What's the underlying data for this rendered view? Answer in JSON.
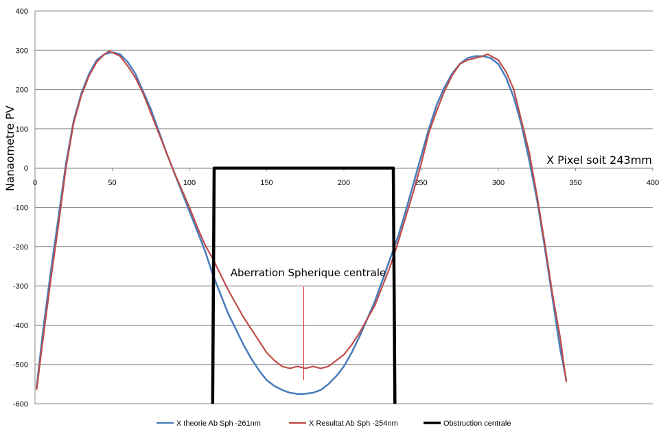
{
  "chart_data": {
    "type": "line",
    "title": "",
    "ylabel": "Nanaometre PV",
    "xlabel": "X Pixel soit 243mm",
    "xlim": [
      0,
      400
    ],
    "ylim": [
      -600,
      400
    ],
    "x_ticks": [
      0,
      50,
      100,
      150,
      200,
      250,
      300,
      350,
      400
    ],
    "y_ticks": [
      400,
      300,
      200,
      100,
      0,
      -100,
      -200,
      -300,
      -400,
      -500,
      -600
    ],
    "grid": "horizontal",
    "legend_position": "bottom",
    "annotation": "Aberration Spherique centrale",
    "annotation_arrow_points_to": {
      "x": 174,
      "y": -540
    },
    "colors": {
      "theory": "#4a7ebb",
      "result": "#be4b48",
      "obstruction": "#000000",
      "grid": "#868686"
    },
    "series": [
      {
        "name": "X theorie Ab Sph -261nm",
        "x": [
          1,
          5,
          10,
          15,
          20,
          25,
          30,
          35,
          40,
          45,
          50,
          55,
          60,
          65,
          70,
          75,
          80,
          85,
          90,
          95,
          100,
          105,
          110,
          115,
          120,
          125,
          130,
          135,
          140,
          145,
          150,
          155,
          160,
          165,
          170,
          174,
          180,
          185,
          190,
          195,
          200,
          205,
          210,
          215,
          220,
          225,
          230,
          235,
          240,
          245,
          250,
          255,
          260,
          265,
          270,
          275,
          280,
          285,
          290,
          295,
          300,
          305,
          310,
          315,
          320,
          325,
          330,
          335,
          340,
          344
        ],
        "y": [
          -560,
          -420,
          -270,
          -130,
          10,
          120,
          190,
          240,
          275,
          290,
          295,
          290,
          270,
          240,
          195,
          150,
          95,
          40,
          -10,
          -60,
          -110,
          -160,
          -210,
          -270,
          -320,
          -370,
          -410,
          -450,
          -485,
          -515,
          -540,
          -555,
          -565,
          -572,
          -575,
          -575,
          -572,
          -565,
          -550,
          -530,
          -505,
          -470,
          -430,
          -385,
          -340,
          -285,
          -230,
          -175,
          -110,
          -40,
          30,
          100,
          160,
          205,
          240,
          265,
          280,
          285,
          285,
          280,
          265,
          230,
          180,
          110,
          20,
          -80,
          -200,
          -330,
          -460,
          -540
        ]
      },
      {
        "name": "X Resultat Ab Sph -254nm",
        "x": [
          1,
          5,
          10,
          15,
          20,
          25,
          30,
          35,
          40,
          45,
          48,
          55,
          60,
          65,
          70,
          75,
          80,
          85,
          90,
          95,
          100,
          105,
          110,
          115,
          120,
          125,
          130,
          135,
          140,
          145,
          150,
          155,
          160,
          165,
          170,
          175,
          180,
          185,
          190,
          195,
          200,
          205,
          210,
          215,
          220,
          225,
          230,
          235,
          240,
          245,
          250,
          255,
          260,
          265,
          270,
          275,
          280,
          285,
          290,
          293,
          300,
          305,
          310,
          315,
          320,
          325,
          330,
          335,
          340,
          344
        ],
        "y": [
          -565,
          -440,
          -290,
          -150,
          0,
          115,
          185,
          235,
          270,
          290,
          298,
          285,
          260,
          230,
          190,
          140,
          90,
          40,
          -10,
          -55,
          -100,
          -150,
          -195,
          -230,
          -270,
          -310,
          -345,
          -380,
          -410,
          -440,
          -470,
          -490,
          -505,
          -510,
          -505,
          -510,
          -505,
          -510,
          -505,
          -490,
          -475,
          -450,
          -420,
          -385,
          -350,
          -300,
          -250,
          -190,
          -125,
          -60,
          10,
          90,
          145,
          195,
          235,
          265,
          275,
          280,
          285,
          290,
          275,
          245,
          200,
          120,
          40,
          -70,
          -190,
          -320,
          -430,
          -545
        ]
      },
      {
        "name": "Obstruction centrale",
        "x": [
          115,
          116,
          232,
          233
        ],
        "y": [
          -600,
          0,
          0,
          -600
        ]
      }
    ]
  }
}
